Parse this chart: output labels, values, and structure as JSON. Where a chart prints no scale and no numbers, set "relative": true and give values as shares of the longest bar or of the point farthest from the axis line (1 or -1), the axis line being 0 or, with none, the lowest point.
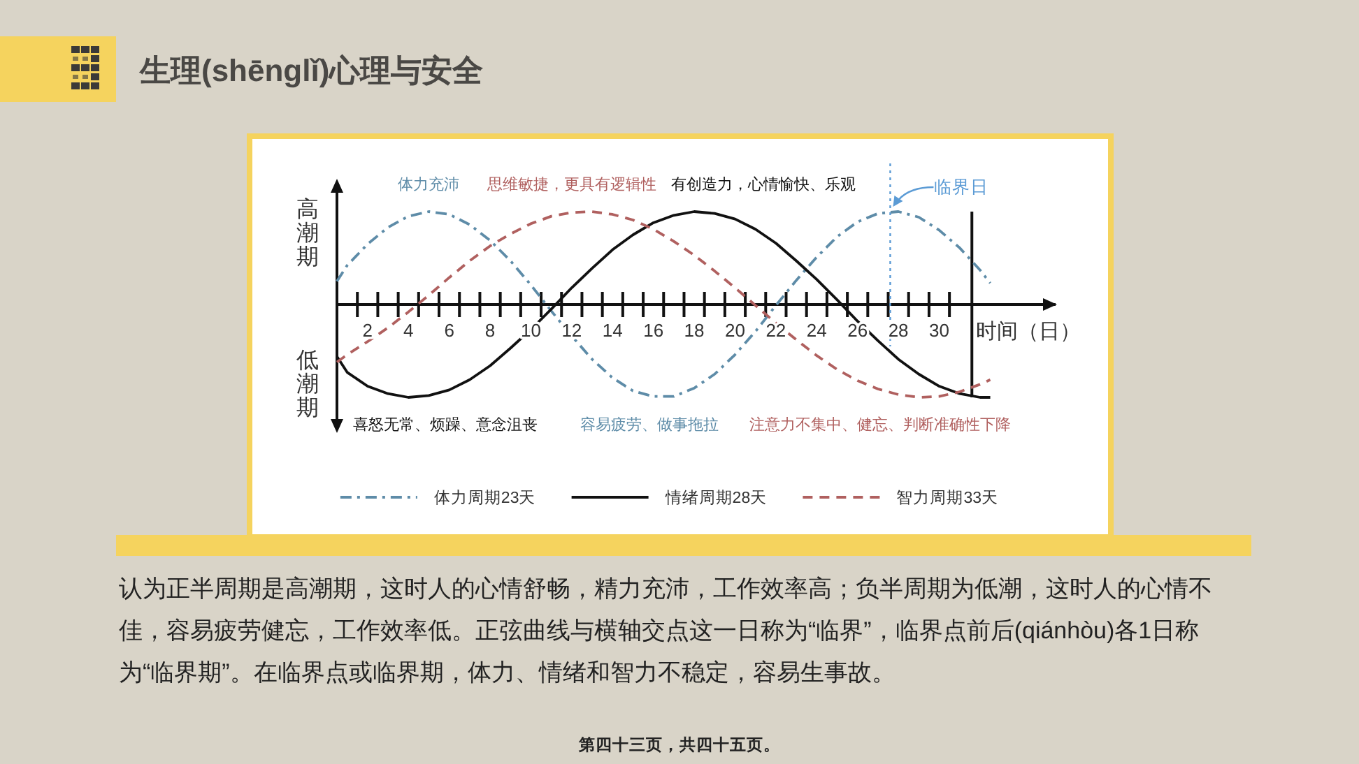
{
  "chart_data": {
    "type": "line",
    "title": "生理(shēnglǐ)心理与安全",
    "xlabel": "时间（日）",
    "relative": true,
    "x": [
      0.5,
      1,
      2,
      3,
      4,
      5,
      6,
      7,
      8,
      9,
      10,
      11,
      12,
      13,
      14,
      15,
      16,
      17,
      18,
      19,
      20,
      21,
      22,
      23,
      24,
      25,
      26,
      27,
      28,
      29,
      30,
      31,
      32,
      32.5
    ],
    "xlim": [
      0.5,
      35.7
    ],
    "xticks": [
      {
        "value": 1.5,
        "label": null
      },
      {
        "value": 2.5,
        "label": null
      },
      {
        "value": 3.5,
        "label": null
      },
      {
        "value": 4.5,
        "label": null
      },
      {
        "value": 5.5,
        "label": null
      },
      {
        "value": 6.5,
        "label": null
      },
      {
        "value": 7.5,
        "label": null
      },
      {
        "value": 8.5,
        "label": null
      },
      {
        "value": 9.5,
        "label": null
      },
      {
        "value": 10.5,
        "label": null
      },
      {
        "value": 11.5,
        "label": null
      },
      {
        "value": 12.5,
        "label": null
      },
      {
        "value": 13.5,
        "label": null
      },
      {
        "value": 14.5,
        "label": null
      },
      {
        "value": 15.5,
        "label": null
      },
      {
        "value": 16.5,
        "label": null
      },
      {
        "value": 17.5,
        "label": null
      },
      {
        "value": 18.5,
        "label": null
      },
      {
        "value": 19.5,
        "label": null
      },
      {
        "value": 20.5,
        "label": null
      },
      {
        "value": 21.5,
        "label": null
      },
      {
        "value": 22.5,
        "label": null
      },
      {
        "value": 23.5,
        "label": null
      },
      {
        "value": 24.5,
        "label": null
      },
      {
        "value": 25.5,
        "label": null
      },
      {
        "value": 26.5,
        "label": null
      },
      {
        "value": 27.5,
        "label": null
      },
      {
        "value": 28.5,
        "label": null
      },
      {
        "value": 29.5,
        "label": null
      },
      {
        "value": 30.5,
        "label": null
      },
      2,
      4,
      6,
      8,
      10,
      12,
      14,
      16,
      18,
      20,
      22,
      24,
      26,
      28,
      30
    ],
    "series": [
      {
        "name": "体力周期23天",
        "color": "#5e8ca8",
        "line_style": "dashdot",
        "values": [
          0.25,
          0.42,
          0.65,
          0.83,
          0.95,
          1.0,
          0.97,
          0.86,
          0.69,
          0.47,
          0.21,
          -0.07,
          -0.34,
          -0.59,
          -0.79,
          -0.93,
          -0.99,
          -0.99,
          -0.9,
          -0.75,
          -0.54,
          -0.29,
          -0.01,
          0.26,
          0.51,
          0.73,
          0.89,
          0.98,
          1.0,
          0.94,
          0.8,
          0.61,
          0.37,
          0.23
        ]
      },
      {
        "name": "情绪周期28天",
        "color": "#111111",
        "line_style": "solid",
        "values": [
          -0.56,
          -0.73,
          -0.88,
          -0.96,
          -1.0,
          -0.98,
          -0.92,
          -0.81,
          -0.66,
          -0.47,
          -0.27,
          -0.05,
          0.18,
          0.39,
          0.59,
          0.75,
          0.88,
          0.96,
          1.0,
          0.98,
          0.92,
          0.81,
          0.66,
          0.47,
          0.27,
          0.05,
          -0.18,
          -0.39,
          -0.59,
          -0.75,
          -0.88,
          -0.96,
          -1.0,
          -1.0
        ]
      },
      {
        "name": "智力周期33天",
        "color": "#b0605f",
        "line_style": "dashed",
        "values": [
          -0.62,
          -0.54,
          -0.4,
          -0.25,
          -0.08,
          0.1,
          0.29,
          0.47,
          0.63,
          0.76,
          0.87,
          0.95,
          0.99,
          1.0,
          0.97,
          0.91,
          0.81,
          0.68,
          0.53,
          0.36,
          0.18,
          -0.01,
          -0.2,
          -0.38,
          -0.55,
          -0.7,
          -0.82,
          -0.91,
          -0.97,
          -1.0,
          -0.99,
          -0.94,
          -0.86,
          -0.81
        ]
      }
    ],
    "ref_lines": [
      {
        "axis": "x",
        "value": 27.6,
        "label": "临界日",
        "color": "#5b9bd5",
        "line_style": "dotted"
      },
      {
        "axis": "x",
        "value": 31.6,
        "color": "#111111",
        "line_style": "solid"
      }
    ],
    "legend": "bottom",
    "annotations": [
      "高潮期",
      "低潮期",
      {
        "text": "体力充沛",
        "x": 5,
        "y": 1.0
      },
      {
        "text": "思维敏捷，更具有逻辑性",
        "x": 12,
        "y": 0.99
      },
      {
        "text": "有创造力，心情愉快、乐观",
        "x": 21.4,
        "y": 0.75
      },
      {
        "text": "喜怒无常、烦躁、意念沮丧",
        "x": 5.8,
        "y": -0.93
      },
      {
        "text": "容易疲劳、做事拖拉",
        "x": 15.8,
        "y": -0.98
      },
      {
        "text": "注意力不集中、健忘、判断准确性下降",
        "x": 27.1,
        "y": -0.92
      },
      "认为正半周期是高潮期，这时人的心情舒畅，精力充沛，工作效率高；负半周期为低潮，这时人的心情不佳，容易疲劳健忘，工作效率低。正弦曲线与横轴交点这一日称为“临界”，临界点前后(qiánhòu)各1日称为“临界期”。在临界点或临界期，体力、情绪和智力不稳定，容易生事故。",
      "第四十三页，共四十五页。"
    ]
  }
}
